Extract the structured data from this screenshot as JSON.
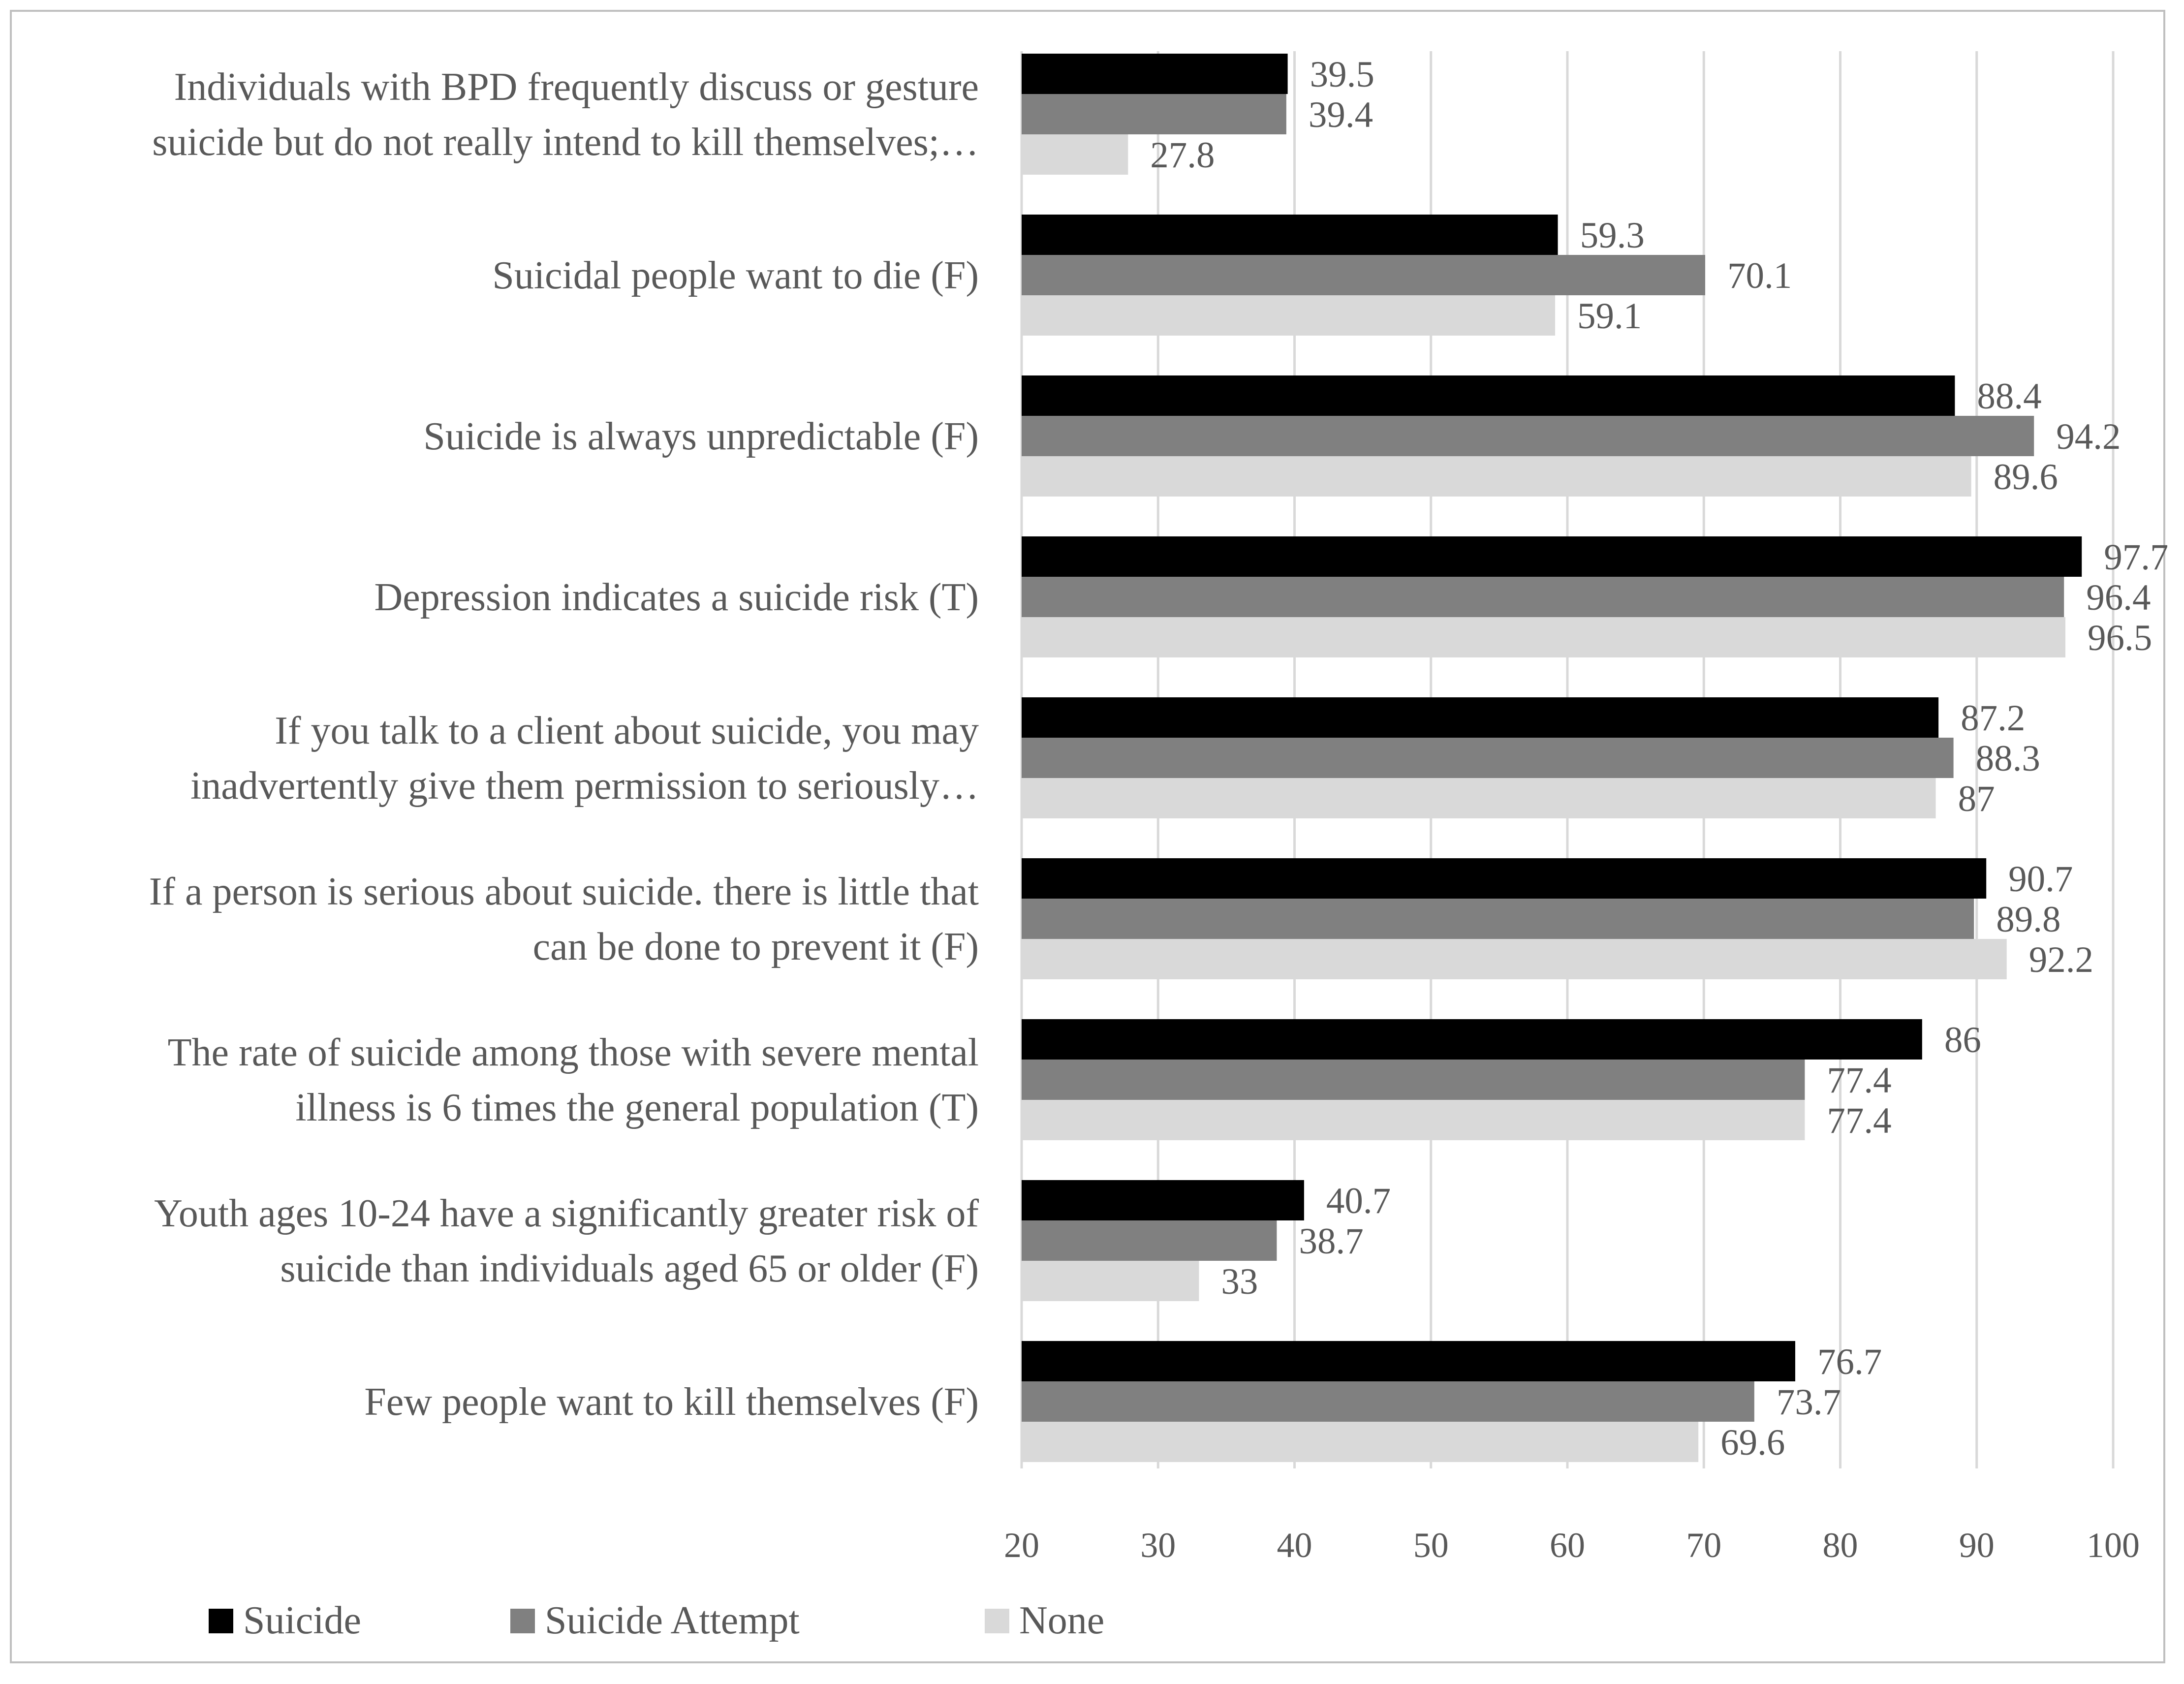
{
  "chart_data": {
    "type": "bar",
    "orientation": "horizontal",
    "title": "",
    "xlabel": "",
    "ylabel": "",
    "xlim": [
      20,
      100
    ],
    "xticks": [
      20,
      30,
      40,
      50,
      60,
      70,
      80,
      90,
      100
    ],
    "grid": true,
    "legend_position": "bottom-left",
    "categories": [
      [
        "Individuals with BPD frequently discuss or gesture",
        "suicide but do not really intend to kill themselves;…"
      ],
      [
        "Suicidal people want to die (F)"
      ],
      [
        "Suicide is always unpredictable (F)"
      ],
      [
        "Depression indicates a suicide risk (T)"
      ],
      [
        "If you talk to a client about suicide, you may",
        "inadvertently give them permission to seriously…"
      ],
      [
        "If a person is serious about suicide. there is little that",
        "can be done to prevent it (F)"
      ],
      [
        "The rate of suicide among those with severe mental",
        "illness is 6 times the general population (T)"
      ],
      [
        "Youth ages 10-24 have a significantly greater risk of",
        "suicide than individuals aged 65 or older (F)"
      ],
      [
        "Few people want to kill themselves (F)"
      ]
    ],
    "series": [
      {
        "name": "Suicide",
        "color": "#000000",
        "values": [
          39.5,
          59.3,
          88.4,
          97.7,
          87.2,
          90.7,
          86,
          40.7,
          76.7
        ]
      },
      {
        "name": "Suicide Attempt",
        "color": "#808080",
        "values": [
          39.4,
          70.1,
          94.2,
          96.4,
          88.3,
          89.8,
          77.4,
          38.7,
          73.7
        ]
      },
      {
        "name": "None",
        "color": "#d9d9d9",
        "values": [
          27.8,
          59.1,
          89.6,
          96.5,
          87,
          92.2,
          77.4,
          33,
          69.6
        ]
      }
    ]
  }
}
